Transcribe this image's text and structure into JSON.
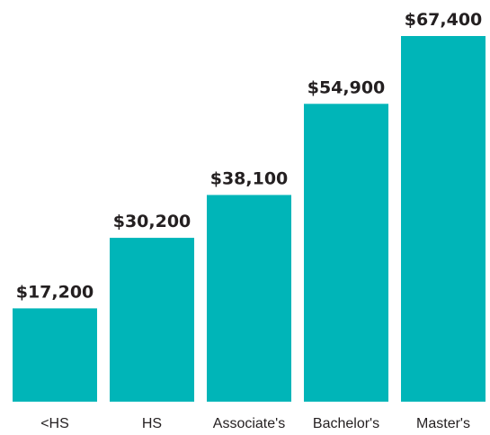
{
  "chart_data": {
    "type": "bar",
    "categories": [
      "<HS",
      "HS",
      "Associate's",
      "Bachelor's",
      "Master's"
    ],
    "values": [
      17200,
      30200,
      38100,
      54900,
      67400
    ],
    "value_labels": [
      "$17,200",
      "$30,200",
      "$38,100",
      "$54,900",
      "$67,400"
    ],
    "color": "#00b5b8"
  }
}
